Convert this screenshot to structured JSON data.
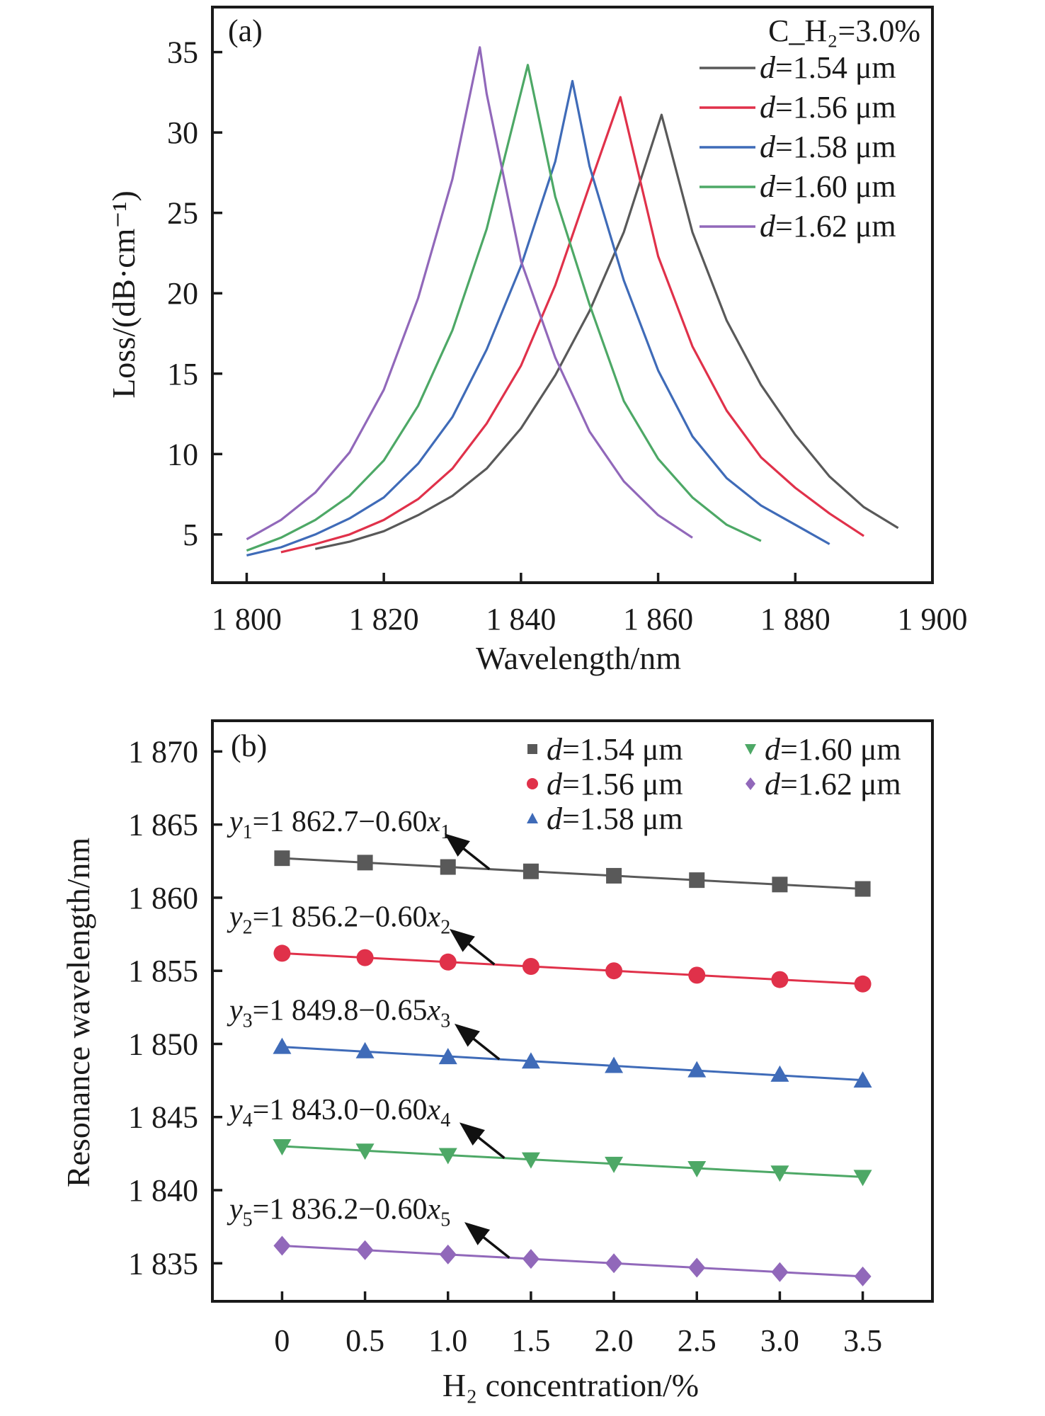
{
  "chart_data": [
    {
      "type": "line",
      "panel_label": "(a)",
      "title": "",
      "xlabel": "Wavelength/nm",
      "ylabel": "Loss/(dB·cm⁻¹)",
      "xlim": [
        1795,
        1900
      ],
      "ylim": [
        2,
        37.8
      ],
      "xticks": [
        1800,
        1820,
        1840,
        1860,
        1880,
        1900
      ],
      "xtick_labels": [
        "1 800",
        "1 820",
        "1 840",
        "1 860",
        "1 880",
        "1 900"
      ],
      "yticks": [
        5,
        10,
        15,
        20,
        25,
        30,
        35
      ],
      "ytick_labels": [
        "5",
        "10",
        "15",
        "20",
        "25",
        "30",
        "35"
      ],
      "grid": false,
      "legend_title": "C_H₂=3.0%",
      "legend_position": "top-right",
      "series": [
        {
          "name": "d=1.54 μm",
          "name_italic": "d",
          "name_rest": "=1.54 μm",
          "color": "#595959",
          "x": [
            1810,
            1815,
            1820,
            1825,
            1830,
            1835,
            1840,
            1845,
            1850,
            1855,
            1860.5,
            1865,
            1870,
            1875,
            1880,
            1885,
            1890,
            1895
          ],
          "y": [
            4.1,
            4.55,
            5.2,
            6.2,
            7.4,
            9.1,
            11.6,
            14.9,
            18.9,
            23.8,
            31.1,
            23.8,
            18.3,
            14.3,
            11.2,
            8.6,
            6.7,
            5.4
          ]
        },
        {
          "name": "d=1.56 μm",
          "name_italic": "d",
          "name_rest": "=1.56 μm",
          "color": "#E0314A",
          "x": [
            1805,
            1810,
            1815,
            1820,
            1825,
            1830,
            1835,
            1840,
            1845,
            1850,
            1854.5,
            1860,
            1865,
            1870,
            1875,
            1880,
            1885,
            1890
          ],
          "y": [
            3.9,
            4.4,
            5.0,
            5.9,
            7.2,
            9.1,
            11.9,
            15.5,
            20.5,
            26.7,
            32.2,
            22.3,
            16.7,
            12.7,
            9.8,
            7.9,
            6.3,
            4.9
          ]
        },
        {
          "name": "d=1.58 μm",
          "name_italic": "d",
          "name_rest": "=1.58 μm",
          "color": "#3F6BB8",
          "x": [
            1800,
            1805,
            1810,
            1815,
            1820,
            1825,
            1830,
            1835,
            1840,
            1845,
            1847.5,
            1850,
            1855,
            1860,
            1865,
            1870,
            1875,
            1880,
            1885
          ],
          "y": [
            3.7,
            4.2,
            5.0,
            6.0,
            7.3,
            9.4,
            12.3,
            16.5,
            21.7,
            28.2,
            33.2,
            27.9,
            20.8,
            15.2,
            11.1,
            8.5,
            6.8,
            5.6,
            4.4
          ]
        },
        {
          "name": "d=1.60 μm",
          "name_italic": "d",
          "name_rest": "=1.60 μm",
          "color": "#4DA866",
          "x": [
            1800,
            1805,
            1810,
            1815,
            1820,
            1825,
            1830,
            1835,
            1841,
            1845,
            1850,
            1855,
            1860,
            1865,
            1870,
            1875
          ],
          "y": [
            4.0,
            4.8,
            5.9,
            7.4,
            9.6,
            13.0,
            17.7,
            24.0,
            34.2,
            26.0,
            19.3,
            13.3,
            9.7,
            7.3,
            5.6,
            4.6
          ]
        },
        {
          "name": "d=1.62 μm",
          "name_italic": "d",
          "name_rest": "=1.62 μm",
          "color": "#9168BA",
          "x": [
            1800,
            1805,
            1810,
            1815,
            1820,
            1825,
            1830,
            1834,
            1835,
            1840,
            1845,
            1850,
            1855,
            1860,
            1865
          ],
          "y": [
            4.7,
            5.9,
            7.6,
            10.1,
            14.0,
            19.7,
            27.1,
            35.3,
            32.4,
            22.0,
            16.0,
            11.4,
            8.3,
            6.2,
            4.8
          ]
        }
      ]
    },
    {
      "type": "scatter",
      "panel_label": "(b)",
      "title": "",
      "xlabel": "H₂ concentration/%",
      "ylabel": "Resonance wavelength/nm",
      "xlim": [
        -0.42,
        3.92
      ],
      "ylim": [
        1832.4,
        1872.1
      ],
      "xticks": [
        0,
        0.5,
        1.0,
        1.5,
        2.0,
        2.5,
        3.0,
        3.5
      ],
      "xtick_labels": [
        "0",
        "0.5",
        "1.0",
        "1.5",
        "2.0",
        "2.5",
        "3.0",
        "3.5"
      ],
      "yticks": [
        1835,
        1840,
        1845,
        1850,
        1855,
        1860,
        1865,
        1870
      ],
      "ytick_labels": [
        "1 835",
        "1 840",
        "1 845",
        "1 850",
        "1 855",
        "1 860",
        "1 865",
        "1 870"
      ],
      "grid": false,
      "legend_position": "top-right",
      "x": [
        0,
        0.5,
        1.0,
        1.5,
        2.0,
        2.5,
        3.0,
        3.5
      ],
      "series": [
        {
          "name": "d=1.54 μm",
          "name_italic": "d",
          "name_rest": "=1.54 μm",
          "color": "#595959",
          "marker": "square",
          "values": [
            1862.7,
            1862.4,
            1862.1,
            1861.8,
            1861.5,
            1861.2,
            1860.9,
            1860.6
          ],
          "fit": {
            "intercept": 1862.7,
            "slope": -0.6,
            "label_y": "y",
            "label_sub": "1",
            "label_body": "=1 862.7−0.60",
            "label_x": "x",
            "label_xsub": "1"
          }
        },
        {
          "name": "d=1.56 μm",
          "name_italic": "d",
          "name_rest": "=1.56 μm",
          "color": "#E0314A",
          "marker": "circle",
          "values": [
            1856.2,
            1855.9,
            1855.6,
            1855.3,
            1855.0,
            1854.7,
            1854.4,
            1854.1
          ],
          "fit": {
            "intercept": 1856.2,
            "slope": -0.6,
            "label_y": "y",
            "label_sub": "2",
            "label_body": "=1 856.2−0.60",
            "label_x": "x",
            "label_xsub": "2"
          }
        },
        {
          "name": "d=1.58 μm",
          "name_italic": "d",
          "name_rest": "=1.58 μm",
          "color": "#3F6BB8",
          "marker": "triangle-up",
          "values": [
            1849.8,
            1849.5,
            1849.1,
            1848.8,
            1848.5,
            1848.2,
            1847.9,
            1847.5
          ],
          "fit": {
            "intercept": 1849.8,
            "slope": -0.65,
            "label_y": "y",
            "label_sub": "3",
            "label_body": "=1 849.8−0.65",
            "label_x": "x",
            "label_xsub": "3"
          }
        },
        {
          "name": "d=1.60 μm",
          "name_italic": "d",
          "name_rest": "=1.60 μm",
          "color": "#4DA866",
          "marker": "triangle-down",
          "values": [
            1843.0,
            1842.7,
            1842.4,
            1842.1,
            1841.8,
            1841.5,
            1841.2,
            1840.9
          ],
          "fit": {
            "intercept": 1843.0,
            "slope": -0.6,
            "label_y": "y",
            "label_sub": "4",
            "label_body": "=1 843.0−0.60",
            "label_x": "x",
            "label_xsub": "4"
          }
        },
        {
          "name": "d=1.62 μm",
          "name_italic": "d",
          "name_rest": "=1.62 μm",
          "color": "#9168BA",
          "marker": "diamond",
          "values": [
            1836.2,
            1835.9,
            1835.6,
            1835.3,
            1835.0,
            1834.7,
            1834.4,
            1834.1
          ],
          "fit": {
            "intercept": 1836.2,
            "slope": -0.6,
            "label_y": "y",
            "label_sub": "5",
            "label_body": "=1 836.2−0.60",
            "label_x": "x",
            "label_xsub": "5"
          }
        }
      ]
    }
  ]
}
